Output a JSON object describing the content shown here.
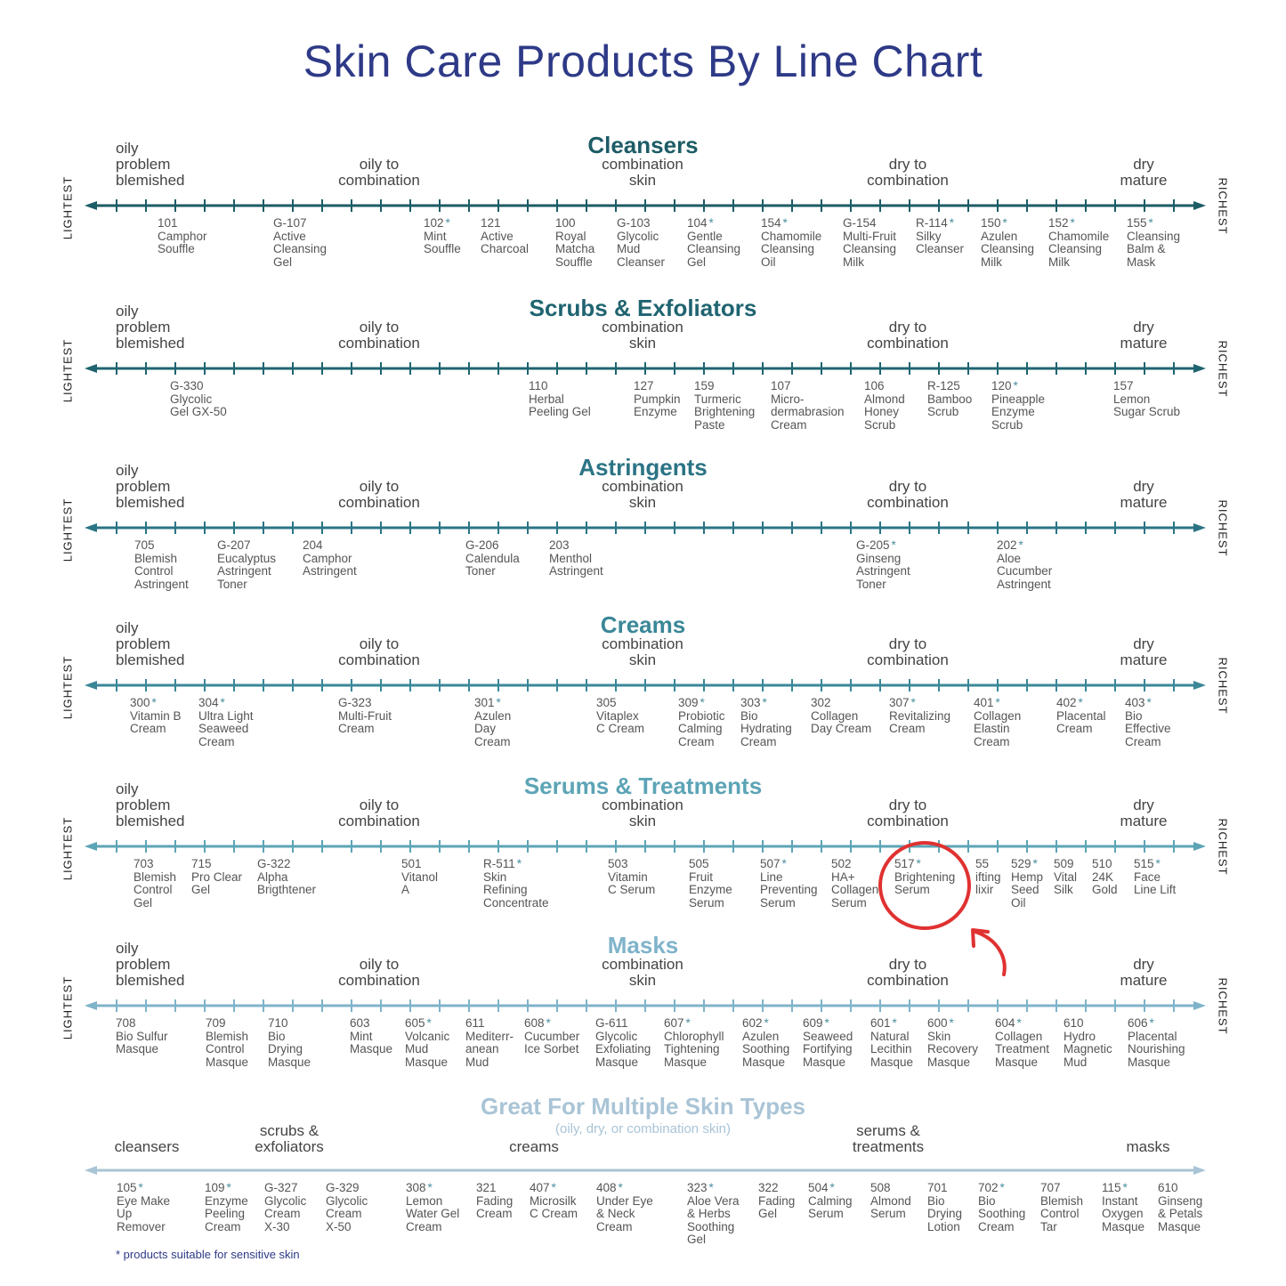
{
  "title": "Skin Care Products By Line Chart",
  "labels": {
    "left": "LIGHTEST",
    "right": "RICHEST",
    "oily": "oily\nproblem\nblemished",
    "oily_combo": "oily to\ncombination",
    "combo": "combination\nskin",
    "dry_combo": "dry to\ncombination",
    "dry": "dry\nmature"
  },
  "sections": [
    {
      "title": "Cleansers",
      "color": "#1d5c66",
      "products": [
        {
          "num": "101",
          "name": "Camphor\nSouffle",
          "star": false
        },
        {
          "num": "G-107",
          "name": "Active\nCleansing\nGel",
          "star": false
        },
        {
          "num": "102",
          "name": "Mint\nSouffle",
          "star": true
        },
        {
          "num": "121",
          "name": "Active\nCharcoal",
          "star": false
        },
        {
          "num": "100",
          "name": "Royal\nMatcha\nSouffle",
          "star": false
        },
        {
          "num": "G-103",
          "name": "Glycolic\nMud\nCleanser",
          "star": false
        },
        {
          "num": "104",
          "name": "Gentle\nCleansing\nGel",
          "star": true
        },
        {
          "num": "154",
          "name": "Chamomile\nCleansing\nOil",
          "star": true
        },
        {
          "num": "G-154",
          "name": "Multi-Fruit\nCleansing\nMilk",
          "star": false
        },
        {
          "num": "R-114",
          "name": "Silky\nCleanser",
          "star": true
        },
        {
          "num": "150",
          "name": "Azulen\nCleansing\nMilk",
          "star": true
        },
        {
          "num": "152",
          "name": "Chamomile\nCleansing\nMilk",
          "star": true
        },
        {
          "num": "155",
          "name": "Cleansing\nBalm &\nMask",
          "star": true
        }
      ]
    },
    {
      "title": "Scrubs & Exfoliators",
      "color": "#1f6470",
      "products": [
        {
          "num": "G-330",
          "name": "Glycolic\nGel GX-50",
          "star": false
        },
        {
          "num": "110",
          "name": "Herbal\nPeeling Gel",
          "star": false
        },
        {
          "num": "127",
          "name": "Pumpkin\nEnzyme",
          "star": false
        },
        {
          "num": "159",
          "name": "Turmeric\nBrightening\nPaste",
          "star": false
        },
        {
          "num": "107",
          "name": "Micro-\ndermabrasion\nCream",
          "star": false
        },
        {
          "num": "106",
          "name": "Almond\nHoney\nScrub",
          "star": false
        },
        {
          "num": "R-125",
          "name": "Bamboo\nScrub",
          "star": false
        },
        {
          "num": "120",
          "name": "Pineapple\nEnzyme\nScrub",
          "star": true
        },
        {
          "num": "157",
          "name": "Lemon\nSugar Scrub",
          "star": false
        }
      ]
    },
    {
      "title": "Astringents",
      "color": "#2b7485",
      "products": [
        {
          "num": "705",
          "name": "Blemish\nControl\nAstringent",
          "star": false
        },
        {
          "num": "G-207",
          "name": "Eucalyptus\nAstringent\nToner",
          "star": false
        },
        {
          "num": "204",
          "name": "Camphor\nAstringent",
          "star": false
        },
        {
          "num": "G-206",
          "name": "Calendula\nToner",
          "star": false
        },
        {
          "num": "203",
          "name": "Menthol\nAstringent",
          "star": false
        },
        {
          "num": "G-205",
          "name": "Ginseng\nAstringent\nToner",
          "star": true
        },
        {
          "num": "202",
          "name": "Aloe\nCucumber\nAstringent",
          "star": true
        }
      ]
    },
    {
      "title": "Creams",
      "color": "#3a8798",
      "products": [
        {
          "num": "300",
          "name": "Vitamin B\nCream",
          "star": true
        },
        {
          "num": "304",
          "name": "Ultra Light\nSeaweed\nCream",
          "star": true
        },
        {
          "num": "G-323",
          "name": "Multi-Fruit\nCream",
          "star": false
        },
        {
          "num": "301",
          "name": "Azulen\nDay\nCream",
          "star": true
        },
        {
          "num": "305",
          "name": "Vitaplex\nC Cream",
          "star": false
        },
        {
          "num": "309",
          "name": "Probiotic\nCalming\nCream",
          "star": true
        },
        {
          "num": "303",
          "name": "Bio\nHydrating\nCream",
          "star": true
        },
        {
          "num": "302",
          "name": "Collagen\nDay Cream",
          "star": false
        },
        {
          "num": "307",
          "name": "Revitalizing\nCream",
          "star": true
        },
        {
          "num": "401",
          "name": "Collagen\nElastin\nCream",
          "star": true
        },
        {
          "num": "402",
          "name": "Placental\nCream",
          "star": true
        },
        {
          "num": "403",
          "name": "Bio\nEffective\nCream",
          "star": true
        }
      ]
    },
    {
      "title": "Serums & Treatments",
      "color": "#5ca4b6",
      "products": [
        {
          "num": "703",
          "name": "Blemish\nControl\nGel",
          "star": false
        },
        {
          "num": "715",
          "name": "Pro Clear\nGel",
          "star": false
        },
        {
          "num": "G-322",
          "name": "Alpha\nBrigthtener",
          "star": false
        },
        {
          "num": "501",
          "name": "Vitanol\nA",
          "star": false
        },
        {
          "num": "R-511",
          "name": "Skin\nRefining\nConcentrate",
          "star": true
        },
        {
          "num": "503",
          "name": "Vitamin\nC Serum",
          "star": false
        },
        {
          "num": "505",
          "name": "Fruit\nEnzyme\nSerum",
          "star": false
        },
        {
          "num": "507",
          "name": "Line\nPreventing\nSerum",
          "star": true
        },
        {
          "num": "502",
          "name": "HA+\nCollagen\nSerum",
          "star": false
        },
        {
          "num": "517",
          "name": "Brightening\nSerum",
          "star": true
        },
        {
          "num": "55",
          "name": "ifting\nlixir",
          "star": false
        },
        {
          "num": "529",
          "name": "Hemp\nSeed\nOil",
          "star": true
        },
        {
          "num": "509",
          "name": "Vital\nSilk",
          "star": false
        },
        {
          "num": "510",
          "name": "24K\nGold",
          "star": false
        },
        {
          "num": "515",
          "name": "Face\nLine Lift",
          "star": true
        }
      ]
    },
    {
      "title": "Masks",
      "color": "#7fb3ca",
      "products": [
        {
          "num": "708",
          "name": "Bio Sulfur\nMasque",
          "star": false
        },
        {
          "num": "709",
          "name": "Blemish\nControl\nMasque",
          "star": false
        },
        {
          "num": "710",
          "name": "Bio\nDrying\nMasque",
          "star": false
        },
        {
          "num": "603",
          "name": "Mint\nMasque",
          "star": false
        },
        {
          "num": "605",
          "name": "Volcanic\nMud\nMasque",
          "star": true
        },
        {
          "num": "611",
          "name": "Mediterr-\nanean\nMud",
          "star": false
        },
        {
          "num": "608",
          "name": "Cucumber\nIce Sorbet",
          "star": true
        },
        {
          "num": "G-611",
          "name": "Glycolic\nExfoliating\nMasque",
          "star": false
        },
        {
          "num": "607",
          "name": "Chlorophyll\nTightening\nMasque",
          "star": true
        },
        {
          "num": "602",
          "name": "Azulen\nSoothing\nMasque",
          "star": true
        },
        {
          "num": "609",
          "name": "Seaweed\nFortifying\nMasque",
          "star": true
        },
        {
          "num": "601",
          "name": "Natural\nLecithin\nMasque",
          "star": true
        },
        {
          "num": "600",
          "name": "Skin\nRecovery\nMasque",
          "star": true
        },
        {
          "num": "604",
          "name": "Collagen\nTreatment\nMasque",
          "star": true
        },
        {
          "num": "610",
          "name": "Hydro\nMagnetic\nMud",
          "star": false
        },
        {
          "num": "606",
          "name": "Placental\nNourishing\nMasque",
          "star": true
        }
      ]
    }
  ],
  "multi": {
    "title": "Great For Multiple Skin Types",
    "subtitle": "(oily, dry, or combination skin)",
    "color": "#a9c4d6",
    "categories": [
      "cleansers",
      "scrubs &\nexfoliators",
      "creams",
      "serums &\ntreatments",
      "masks"
    ],
    "products": [
      {
        "num": "105",
        "name": "Eye Make\nUp\nRemover",
        "star": true
      },
      {
        "num": "109",
        "name": "Enzyme\nPeeling\nCream",
        "star": true
      },
      {
        "num": "G-327",
        "name": "Glycolic\nCream\nX-30",
        "star": false
      },
      {
        "num": "G-329",
        "name": "Glycolic\nCream\nX-50",
        "star": false
      },
      {
        "num": "308",
        "name": "Lemon\nWater Gel\nCream",
        "star": true
      },
      {
        "num": "321",
        "name": "Fading\nCream",
        "star": false
      },
      {
        "num": "407",
        "name": "Microsilk\nC Cream",
        "star": true
      },
      {
        "num": "408",
        "name": "Under Eye\n& Neck\nCream",
        "star": true
      },
      {
        "num": "323",
        "name": "Aloe Vera\n& Herbs\nSoothing\nGel",
        "star": true
      },
      {
        "num": "322",
        "name": "Fading\nGel",
        "star": false
      },
      {
        "num": "504",
        "name": "Calming\nSerum",
        "star": true
      },
      {
        "num": "508",
        "name": "Almond\nSerum",
        "star": false
      },
      {
        "num": "701",
        "name": "Bio\nDrying\nLotion",
        "star": false
      },
      {
        "num": "702",
        "name": "Bio\nSoothing\nCream",
        "star": true
      },
      {
        "num": "707",
        "name": "Blemish\nControl\nTar",
        "star": false
      },
      {
        "num": "115",
        "name": "Instant\nOxygen\nMasque",
        "star": true
      },
      {
        "num": "610",
        "name": "Ginseng\n& Petals\nMasque",
        "star": false
      }
    ]
  },
  "footnote": "* products suitable for sensitive skin",
  "highlight": {
    "product": "517",
    "color": "#e03131"
  }
}
